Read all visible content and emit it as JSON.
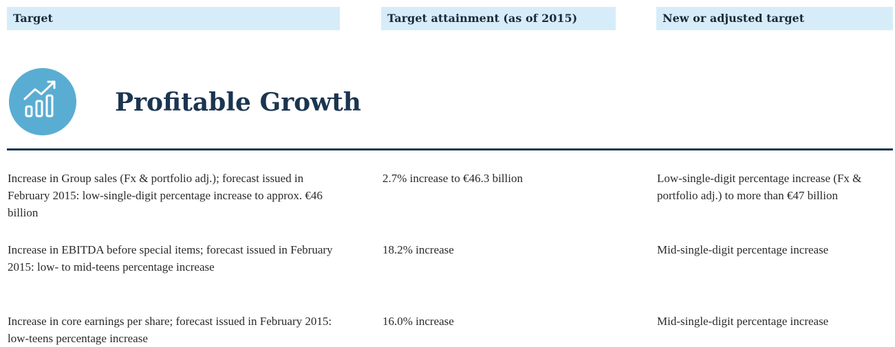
{
  "header": {
    "columns": [
      "Target",
      "Target attainment (as of 2015)",
      "New or adjusted target"
    ]
  },
  "section": {
    "title": "Profitable Growth"
  },
  "table": {
    "rows": [
      [
        "Increase in Group sales (Fx & portfolio adj.); forecast issued in February 2015: low-single-digit percentage increase to approx. €46 billion",
        "2.7% increase to €46.3 billion",
        "Low-single-digit percentage increase (Fx & portfolio adj.) to more than €47 billion"
      ],
      [
        "Increase in EBITDA before special items; forecast issued in February 2015: low- to mid-teens percentage increase",
        "18.2% increase",
        "Mid-single-digit percentage increase"
      ],
      [
        "Increase in core earnings per share; forecast issued in February 2015: low-teens percentage increase",
        "16.0% increase",
        "Mid-single-digit percentage increase"
      ]
    ]
  }
}
